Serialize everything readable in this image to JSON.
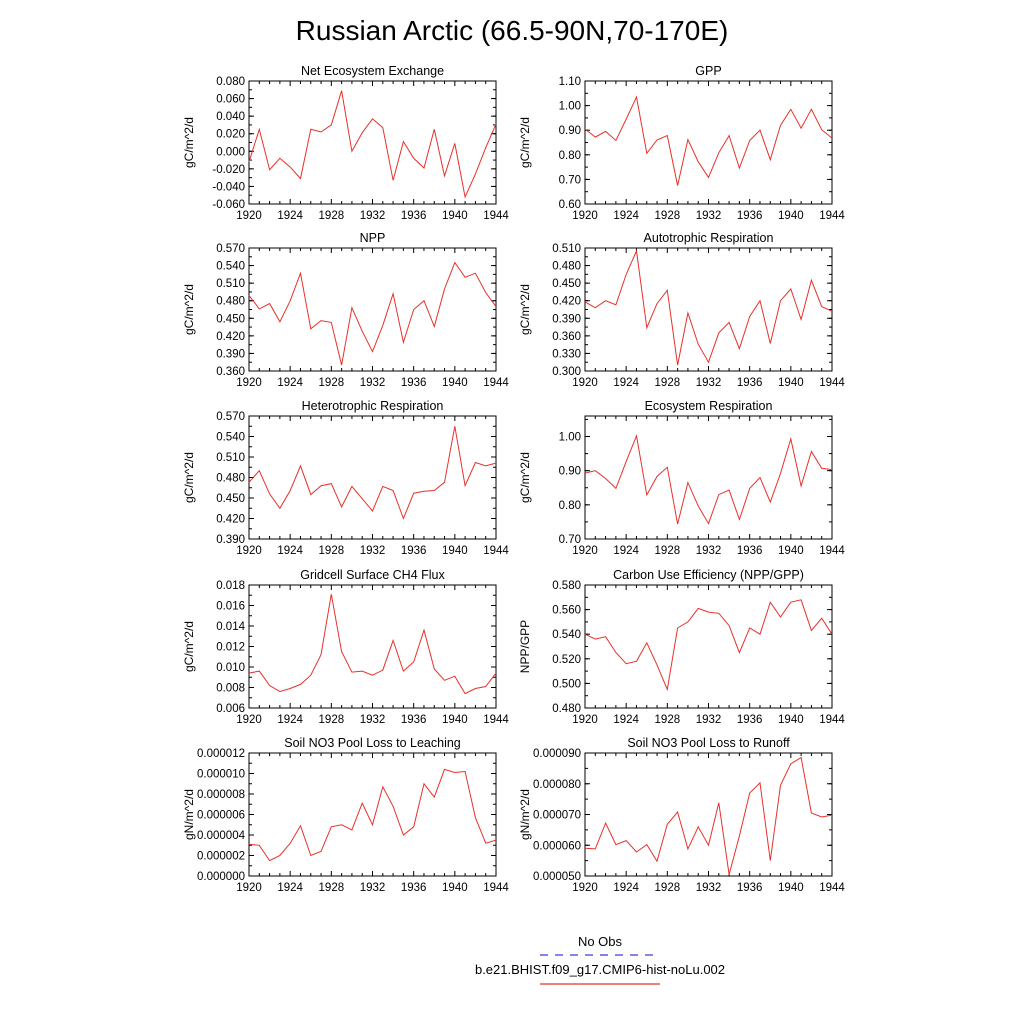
{
  "figure_title": "Russian Arctic (66.5-90N,70-170E)",
  "legend": [
    {
      "label": "No Obs",
      "color": "#3b3bd9",
      "style": "dashed"
    },
    {
      "label": "b.e21.BHIST.f09_g17.CMIP6-hist-noLu.002",
      "color": "#e8302a",
      "style": "solid"
    }
  ],
  "chart_data": [
    {
      "type": "line",
      "title": "Net Ecosystem Exchange",
      "ylabel": "gC/m^2/d",
      "ylim": [
        -0.06,
        0.08
      ],
      "yticks": [
        "0.080",
        "0.060",
        "0.040",
        "0.020",
        "0.000",
        "-0.020",
        "-0.040",
        "-0.060"
      ],
      "xlim": [
        1920,
        1944
      ],
      "xticks": [
        "1920",
        "1924",
        "1928",
        "1932",
        "1936",
        "1940",
        "1944"
      ],
      "series": [
        {
          "color": "#e8302a",
          "x": [
            1920,
            1921,
            1922,
            1923,
            1924,
            1925,
            1926,
            1927,
            1928,
            1929,
            1930,
            1931,
            1932,
            1933,
            1934,
            1935,
            1936,
            1937,
            1938,
            1939,
            1940,
            1941,
            1942,
            1943,
            1944
          ],
          "y": [
            -0.012,
            0.025,
            -0.021,
            -0.008,
            -0.018,
            -0.031,
            0.025,
            0.022,
            0.03,
            0.069,
            0.0,
            0.021,
            0.037,
            0.027,
            -0.033,
            0.011,
            -0.008,
            -0.019,
            0.025,
            -0.028,
            0.009,
            -0.052,
            -0.026,
            0.004,
            0.031
          ]
        }
      ]
    },
    {
      "type": "line",
      "title": "GPP",
      "ylabel": "gC/m^2/d",
      "ylim": [
        0.6,
        1.1
      ],
      "yticks": [
        "1.10",
        "1.00",
        "0.90",
        "0.80",
        "0.70",
        "0.60"
      ],
      "xlim": [
        1920,
        1944
      ],
      "xticks": [
        "1920",
        "1924",
        "1928",
        "1932",
        "1936",
        "1940",
        "1944"
      ],
      "series": [
        {
          "color": "#e8302a",
          "x": [
            1920,
            1921,
            1922,
            1923,
            1924,
            1925,
            1926,
            1927,
            1928,
            1929,
            1930,
            1931,
            1932,
            1933,
            1934,
            1935,
            1936,
            1937,
            1938,
            1939,
            1940,
            1941,
            1942,
            1943,
            1944
          ],
          "y": [
            0.905,
            0.872,
            0.895,
            0.858,
            0.945,
            1.035,
            0.806,
            0.86,
            0.878,
            0.675,
            0.862,
            0.772,
            0.708,
            0.808,
            0.878,
            0.746,
            0.858,
            0.9,
            0.78,
            0.92,
            0.985,
            0.908,
            0.985,
            0.902,
            0.868
          ]
        }
      ]
    },
    {
      "type": "line",
      "title": "NPP",
      "ylabel": "gC/m^2/d",
      "ylim": [
        0.36,
        0.57
      ],
      "yticks": [
        "0.570",
        "0.540",
        "0.510",
        "0.480",
        "0.450",
        "0.420",
        "0.390",
        "0.360"
      ],
      "xlim": [
        1920,
        1944
      ],
      "xticks": [
        "1920",
        "1924",
        "1928",
        "1932",
        "1936",
        "1940",
        "1944"
      ],
      "series": [
        {
          "color": "#e8302a",
          "x": [
            1920,
            1921,
            1922,
            1923,
            1924,
            1925,
            1926,
            1927,
            1928,
            1929,
            1930,
            1931,
            1932,
            1933,
            1934,
            1935,
            1936,
            1937,
            1938,
            1939,
            1940,
            1941,
            1942,
            1943,
            1944
          ],
          "y": [
            0.489,
            0.466,
            0.475,
            0.444,
            0.48,
            0.527,
            0.432,
            0.446,
            0.443,
            0.37,
            0.468,
            0.428,
            0.393,
            0.438,
            0.492,
            0.409,
            0.465,
            0.48,
            0.436,
            0.5,
            0.545,
            0.52,
            0.527,
            0.494,
            0.47
          ]
        }
      ]
    },
    {
      "type": "line",
      "title": "Autotrophic Respiration",
      "ylabel": "gC/m^2/d",
      "ylim": [
        0.3,
        0.51
      ],
      "yticks": [
        "0.510",
        "0.480",
        "0.450",
        "0.420",
        "0.390",
        "0.360",
        "0.330",
        "0.300"
      ],
      "xlim": [
        1920,
        1944
      ],
      "xticks": [
        "1920",
        "1924",
        "1928",
        "1932",
        "1936",
        "1940",
        "1944"
      ],
      "series": [
        {
          "color": "#e8302a",
          "x": [
            1920,
            1921,
            1922,
            1923,
            1924,
            1925,
            1926,
            1927,
            1928,
            1929,
            1930,
            1931,
            1932,
            1933,
            1934,
            1935,
            1936,
            1937,
            1938,
            1939,
            1940,
            1941,
            1942,
            1943,
            1944
          ],
          "y": [
            0.418,
            0.408,
            0.42,
            0.413,
            0.465,
            0.505,
            0.374,
            0.415,
            0.438,
            0.31,
            0.399,
            0.346,
            0.315,
            0.365,
            0.383,
            0.338,
            0.393,
            0.42,
            0.347,
            0.42,
            0.44,
            0.388,
            0.455,
            0.41,
            0.402
          ]
        }
      ]
    },
    {
      "type": "line",
      "title": "Heterotrophic Respiration",
      "ylabel": "gC/m^2/d",
      "ylim": [
        0.39,
        0.57
      ],
      "yticks": [
        "0.570",
        "0.540",
        "0.510",
        "0.480",
        "0.450",
        "0.420",
        "0.390"
      ],
      "xlim": [
        1920,
        1944
      ],
      "xticks": [
        "1920",
        "1924",
        "1928",
        "1932",
        "1936",
        "1940",
        "1944"
      ],
      "series": [
        {
          "color": "#e8302a",
          "x": [
            1920,
            1921,
            1922,
            1923,
            1924,
            1925,
            1926,
            1927,
            1928,
            1929,
            1930,
            1931,
            1932,
            1933,
            1934,
            1935,
            1936,
            1937,
            1938,
            1939,
            1940,
            1941,
            1942,
            1943,
            1944
          ],
          "y": [
            0.473,
            0.49,
            0.456,
            0.435,
            0.461,
            0.497,
            0.455,
            0.468,
            0.471,
            0.437,
            0.467,
            0.449,
            0.431,
            0.467,
            0.461,
            0.42,
            0.457,
            0.46,
            0.461,
            0.473,
            0.555,
            0.468,
            0.502,
            0.497,
            0.501
          ]
        }
      ]
    },
    {
      "type": "line",
      "title": "Ecosystem Respiration",
      "ylabel": "gC/m^2/d",
      "ylim": [
        0.7,
        1.06
      ],
      "yticks": [
        "1.00",
        "0.90",
        "0.80",
        "0.70"
      ],
      "xlim": [
        1920,
        1944
      ],
      "xticks": [
        "1920",
        "1924",
        "1928",
        "1932",
        "1936",
        "1940",
        "1944"
      ],
      "series": [
        {
          "color": "#e8302a",
          "x": [
            1920,
            1921,
            1922,
            1923,
            1924,
            1925,
            1926,
            1927,
            1928,
            1929,
            1930,
            1931,
            1932,
            1933,
            1934,
            1935,
            1936,
            1937,
            1938,
            1939,
            1940,
            1941,
            1942,
            1943,
            1944
          ],
          "y": [
            0.893,
            0.9,
            0.877,
            0.848,
            0.927,
            1.002,
            0.829,
            0.883,
            0.91,
            0.744,
            0.865,
            0.797,
            0.745,
            0.83,
            0.843,
            0.757,
            0.848,
            0.88,
            0.808,
            0.892,
            0.993,
            0.855,
            0.956,
            0.907,
            0.903
          ]
        }
      ]
    },
    {
      "type": "line",
      "title": "Gridcell Surface CH4 Flux",
      "ylabel": "gC/m^2/d",
      "ylim": [
        0.006,
        0.018
      ],
      "yticks": [
        "0.018",
        "0.016",
        "0.014",
        "0.012",
        "0.010",
        "0.008",
        "0.006"
      ],
      "xlim": [
        1920,
        1944
      ],
      "xticks": [
        "1920",
        "1924",
        "1928",
        "1932",
        "1936",
        "1940",
        "1944"
      ],
      "series": [
        {
          "color": "#e8302a",
          "x": [
            1920,
            1921,
            1922,
            1923,
            1924,
            1925,
            1926,
            1927,
            1928,
            1929,
            1930,
            1931,
            1932,
            1933,
            1934,
            1935,
            1936,
            1937,
            1938,
            1939,
            1940,
            1941,
            1942,
            1943,
            1944
          ],
          "y": [
            0.0094,
            0.0096,
            0.0082,
            0.0076,
            0.0079,
            0.0083,
            0.0092,
            0.0112,
            0.0171,
            0.0115,
            0.0095,
            0.0096,
            0.0092,
            0.0097,
            0.0126,
            0.0096,
            0.0105,
            0.0136,
            0.0098,
            0.0087,
            0.0091,
            0.0074,
            0.0079,
            0.0081,
            0.0094
          ]
        }
      ]
    },
    {
      "type": "line",
      "title": "Carbon Use Efficiency (NPP/GPP)",
      "ylabel": "NPP/GPP",
      "ylim": [
        0.48,
        0.58
      ],
      "yticks": [
        "0.580",
        "0.560",
        "0.540",
        "0.520",
        "0.500",
        "0.480"
      ],
      "xlim": [
        1920,
        1944
      ],
      "xticks": [
        "1920",
        "1924",
        "1928",
        "1932",
        "1936",
        "1940",
        "1944"
      ],
      "series": [
        {
          "color": "#e8302a",
          "x": [
            1920,
            1921,
            1922,
            1923,
            1924,
            1925,
            1926,
            1927,
            1928,
            1929,
            1930,
            1931,
            1932,
            1933,
            1934,
            1935,
            1936,
            1937,
            1938,
            1939,
            1940,
            1941,
            1942,
            1943,
            1944
          ],
          "y": [
            0.54,
            0.536,
            0.538,
            0.525,
            0.516,
            0.518,
            0.533,
            0.515,
            0.495,
            0.545,
            0.55,
            0.561,
            0.558,
            0.557,
            0.547,
            0.525,
            0.545,
            0.54,
            0.566,
            0.554,
            0.566,
            0.568,
            0.543,
            0.553,
            0.54
          ]
        }
      ]
    },
    {
      "type": "line",
      "title": "Soil NO3 Pool Loss to Leaching",
      "ylabel": "gN/m^2/d",
      "ylim": [
        0.0,
        1.2e-05
      ],
      "yticks": [
        "0.000012",
        "0.000010",
        "0.000008",
        "0.000006",
        "0.000004",
        "0.000002",
        "0.000000"
      ],
      "xlim": [
        1920,
        1944
      ],
      "xticks": [
        "1920",
        "1924",
        "1928",
        "1932",
        "1936",
        "1940",
        "1944"
      ],
      "series": [
        {
          "color": "#e8302a",
          "x": [
            1920,
            1921,
            1922,
            1923,
            1924,
            1925,
            1926,
            1927,
            1928,
            1929,
            1930,
            1931,
            1932,
            1933,
            1934,
            1935,
            1936,
            1937,
            1938,
            1939,
            1940,
            1941,
            1942,
            1943,
            1944
          ],
          "y": [
            3.1e-06,
            3e-06,
            1.5e-06,
            2e-06,
            3.2e-06,
            4.9e-06,
            2e-06,
            2.4e-06,
            4.8e-06,
            5e-06,
            4.5e-06,
            7.1e-06,
            5e-06,
            8.7e-06,
            6.8e-06,
            4e-06,
            4.8e-06,
            9e-06,
            7.7e-06,
            1.04e-05,
            1.01e-05,
            1.02e-05,
            5.7e-06,
            3.2e-06,
            3.5e-06
          ]
        }
      ]
    },
    {
      "type": "line",
      "title": "Soil NO3 Pool Loss to Runoff",
      "ylabel": "gN/m^2/d",
      "ylim": [
        5e-05,
        9e-05
      ],
      "yticks": [
        "0.000090",
        "0.000080",
        "0.000070",
        "0.000060",
        "0.000050"
      ],
      "xlim": [
        1920,
        1944
      ],
      "xticks": [
        "1920",
        "1924",
        "1928",
        "1932",
        "1936",
        "1940",
        "1944"
      ],
      "series": [
        {
          "color": "#e8302a",
          "x": [
            1920,
            1921,
            1922,
            1923,
            1924,
            1925,
            1926,
            1927,
            1928,
            1929,
            1930,
            1931,
            1932,
            1933,
            1934,
            1935,
            1936,
            1937,
            1938,
            1939,
            1940,
            1941,
            1942,
            1943,
            1944
          ],
          "y": [
            5.9e-05,
            5.88e-05,
            6.72e-05,
            6.02e-05,
            6.15e-05,
            5.78e-05,
            6.02e-05,
            5.48e-05,
            6.68e-05,
            7.08e-05,
            5.88e-05,
            6.6e-05,
            6e-05,
            7.38e-05,
            5.05e-05,
            6.3e-05,
            7.7e-05,
            8.03e-05,
            5.5e-05,
            7.95e-05,
            8.65e-05,
            8.85e-05,
            7.05e-05,
            6.92e-05,
            6.98e-05
          ]
        }
      ]
    }
  ]
}
